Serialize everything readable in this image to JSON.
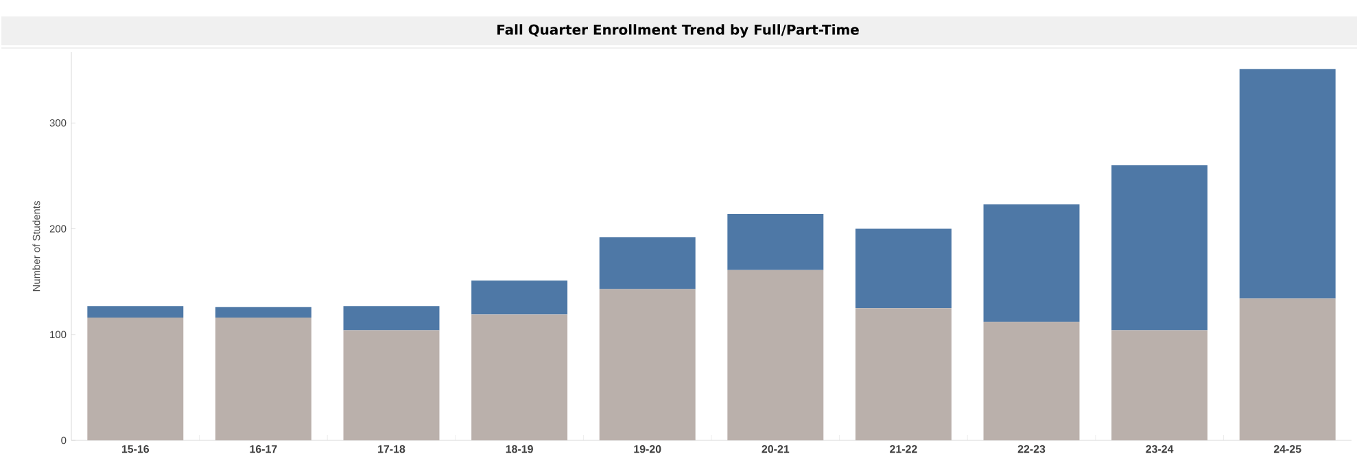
{
  "chart_data": {
    "type": "bar",
    "title": "Fall Quarter Enrollment Trend by Full/Part-Time",
    "ylabel": "Number of Students",
    "categories": [
      "15-16",
      "16-17",
      "17-18",
      "18-19",
      "19-20",
      "20-21",
      "21-22",
      "22-23",
      "23-24",
      "24-25"
    ],
    "stacked": true,
    "series": [
      {
        "color": "#bab0ab",
        "values": [
          116,
          116,
          104,
          119,
          143,
          161,
          125,
          112,
          104,
          134
        ]
      },
      {
        "color": "#4e78a6",
        "values": [
          11,
          10,
          23,
          32,
          49,
          53,
          75,
          111,
          156,
          217
        ]
      }
    ],
    "ylim": [
      0,
      367
    ],
    "yticks": [
      0,
      100,
      200,
      300
    ]
  }
}
